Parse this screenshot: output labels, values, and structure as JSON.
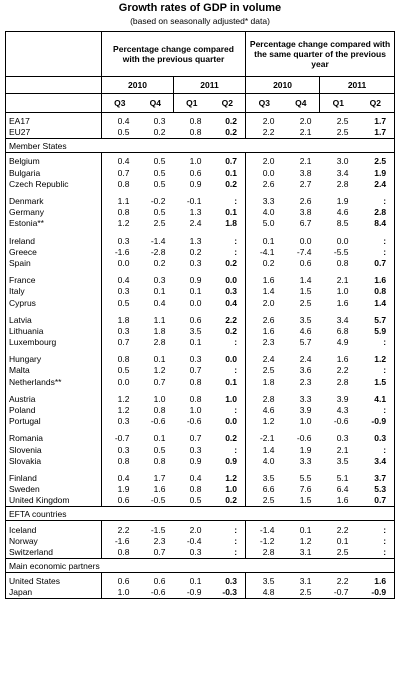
{
  "title": "Growth rates of GDP in volume",
  "subtitle": "(based on seasonally adjusted* data)",
  "table": {
    "groups": [
      {
        "heading": "Percentage change compared with the previous quarter",
        "years": [
          {
            "year": "2010",
            "quarters": [
              "Q3",
              "Q4"
            ]
          },
          {
            "year": "2011",
            "quarters": [
              "Q1",
              "Q2"
            ]
          }
        ]
      },
      {
        "heading": "Percentage change compared with the same quarter of the previous year",
        "years": [
          {
            "year": "2010",
            "quarters": [
              "Q3",
              "Q4"
            ]
          },
          {
            "year": "2011",
            "quarters": [
              "Q1",
              "Q2"
            ]
          }
        ]
      }
    ],
    "sections": [
      {
        "blocks": [
          [
            {
              "label": "EA17",
              "values": [
                "0.4",
                "0.3",
                "0.8",
                "0.2",
                "2.0",
                "2.0",
                "2.5",
                "1.7"
              ]
            },
            {
              "label": "EU27",
              "values": [
                "0.5",
                "0.2",
                "0.8",
                "0.2",
                "2.2",
                "2.1",
                "2.5",
                "1.7"
              ]
            }
          ]
        ]
      },
      {
        "title": "Member States",
        "blocks": [
          [
            {
              "label": "Belgium",
              "values": [
                "0.4",
                "0.5",
                "1.0",
                "0.7",
                "2.0",
                "2.1",
                "3.0",
                "2.5"
              ]
            },
            {
              "label": "Bulgaria",
              "values": [
                "0.7",
                "0.5",
                "0.6",
                "0.1",
                "0.0",
                "3.8",
                "3.4",
                "1.9"
              ]
            },
            {
              "label": "Czech Republic",
              "values": [
                "0.8",
                "0.5",
                "0.9",
                "0.2",
                "2.6",
                "2.7",
                "2.8",
                "2.4"
              ]
            }
          ],
          [
            {
              "label": "Denmark",
              "values": [
                "1.1",
                "-0.2",
                "-0.1",
                ":",
                "3.3",
                "2.6",
                "1.9",
                ":"
              ]
            },
            {
              "label": "Germany",
              "values": [
                "0.8",
                "0.5",
                "1.3",
                "0.1",
                "4.0",
                "3.8",
                "4.6",
                "2.8"
              ]
            },
            {
              "label": "Estonia**",
              "values": [
                "1.2",
                "2.5",
                "2.4",
                "1.8",
                "5.0",
                "6.7",
                "8.5",
                "8.4"
              ]
            }
          ],
          [
            {
              "label": "Ireland",
              "values": [
                "0.3",
                "-1.4",
                "1.3",
                ":",
                "0.1",
                "0.0",
                "0.0",
                ":"
              ]
            },
            {
              "label": "Greece",
              "values": [
                "-1.6",
                "-2.8",
                "0.2",
                ":",
                "-4.1",
                "-7.4",
                "-5.5",
                ":"
              ]
            },
            {
              "label": "Spain",
              "values": [
                "0.0",
                "0.2",
                "0.3",
                "0.2",
                "0.2",
                "0.6",
                "0.8",
                "0.7"
              ]
            }
          ],
          [
            {
              "label": "France",
              "values": [
                "0.4",
                "0.3",
                "0.9",
                "0.0",
                "1.6",
                "1.4",
                "2.1",
                "1.6"
              ]
            },
            {
              "label": "Italy",
              "values": [
                "0.3",
                "0.1",
                "0.1",
                "0.3",
                "1.4",
                "1.5",
                "1.0",
                "0.8"
              ]
            },
            {
              "label": "Cyprus",
              "values": [
                "0.5",
                "0.4",
                "0.0",
                "0.4",
                "2.0",
                "2.5",
                "1.6",
                "1.4"
              ]
            }
          ],
          [
            {
              "label": "Latvia",
              "values": [
                "1.8",
                "1.1",
                "0.6",
                "2.2",
                "2.6",
                "3.5",
                "3.4",
                "5.7"
              ]
            },
            {
              "label": "Lithuania",
              "values": [
                "0.3",
                "1.8",
                "3.5",
                "0.2",
                "1.6",
                "4.6",
                "6.8",
                "5.9"
              ]
            },
            {
              "label": "Luxembourg",
              "values": [
                "0.7",
                "2.8",
                "0.1",
                ":",
                "2.3",
                "5.7",
                "4.9",
                ":"
              ]
            }
          ],
          [
            {
              "label": "Hungary",
              "values": [
                "0.8",
                "0.1",
                "0.3",
                "0.0",
                "2.4",
                "2.4",
                "1.6",
                "1.2"
              ]
            },
            {
              "label": "Malta",
              "values": [
                "0.5",
                "1.2",
                "0.7",
                ":",
                "2.5",
                "3.6",
                "2.2",
                ":"
              ]
            },
            {
              "label": "Netherlands**",
              "values": [
                "0.0",
                "0.7",
                "0.8",
                "0.1",
                "1.8",
                "2.3",
                "2.8",
                "1.5"
              ]
            }
          ],
          [
            {
              "label": "Austria",
              "values": [
                "1.2",
                "1.0",
                "0.8",
                "1.0",
                "2.8",
                "3.3",
                "3.9",
                "4.1"
              ]
            },
            {
              "label": "Poland",
              "values": [
                "1.2",
                "0.8",
                "1.0",
                ":",
                "4.6",
                "3.9",
                "4.3",
                ":"
              ]
            },
            {
              "label": "Portugal",
              "values": [
                "0.3",
                "-0.6",
                "-0.6",
                "0.0",
                "1.2",
                "1.0",
                "-0.6",
                "-0.9"
              ]
            }
          ],
          [
            {
              "label": "Romania",
              "values": [
                "-0.7",
                "0.1",
                "0.7",
                "0.2",
                "-2.1",
                "-0.6",
                "0.3",
                "0.3"
              ]
            },
            {
              "label": "Slovenia",
              "values": [
                "0.3",
                "0.5",
                "0.3",
                ":",
                "1.4",
                "1.9",
                "2.1",
                ":"
              ]
            },
            {
              "label": "Slovakia",
              "values": [
                "0.8",
                "0.8",
                "0.9",
                "0.9",
                "4.0",
                "3.3",
                "3.5",
                "3.4"
              ]
            }
          ],
          [
            {
              "label": "Finland",
              "values": [
                "0.4",
                "1.7",
                "0.4",
                "1.2",
                "3.5",
                "5.5",
                "5.1",
                "3.7"
              ]
            },
            {
              "label": "Sweden",
              "values": [
                "1.9",
                "1.6",
                "0.8",
                "1.0",
                "6.6",
                "7.6",
                "6.4",
                "5.3"
              ]
            },
            {
              "label": "United Kingdom",
              "values": [
                "0.6",
                "-0.5",
                "0.5",
                "0.2",
                "2.5",
                "1.5",
                "1.6",
                "0.7"
              ]
            }
          ]
        ]
      },
      {
        "title": "EFTA countries",
        "blocks": [
          [
            {
              "label": "Iceland",
              "values": [
                "2.2",
                "-1.5",
                "2.0",
                ":",
                "-1.4",
                "0.1",
                "2.2",
                ":"
              ]
            },
            {
              "label": "Norway",
              "values": [
                "-1.6",
                "2.3",
                "-0.4",
                ":",
                "-1.2",
                "1.2",
                "0.1",
                ":"
              ]
            },
            {
              "label": "Switzerland",
              "values": [
                "0.8",
                "0.7",
                "0.3",
                ":",
                "2.8",
                "3.1",
                "2.5",
                ":"
              ]
            }
          ]
        ]
      },
      {
        "title": "Main economic partners",
        "blocks": [
          [
            {
              "label": "United States",
              "values": [
                "0.6",
                "0.6",
                "0.1",
                "0.3",
                "3.5",
                "3.1",
                "2.2",
                "1.6"
              ]
            },
            {
              "label": "Japan",
              "values": [
                "1.0",
                "-0.6",
                "-0.9",
                "-0.3",
                "4.8",
                "2.5",
                "-0.7",
                "-0.9"
              ]
            }
          ]
        ]
      }
    ]
  }
}
